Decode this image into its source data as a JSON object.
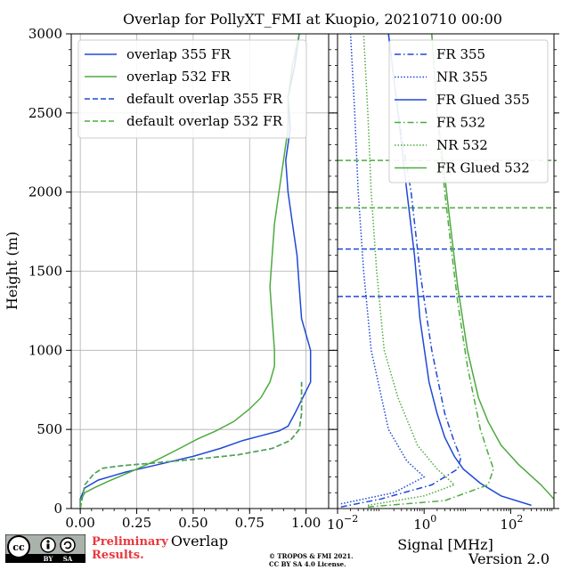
{
  "chart_data": [
    {
      "type": "line",
      "panel": "left",
      "title": "Overlap for PollyXT_FMI at Kuopio, 20210710 00:00",
      "xlabel": "Overlap",
      "ylabel": "Height (m)",
      "xlim": [
        -0.04,
        1.1
      ],
      "ylim": [
        0,
        3000
      ],
      "xticks": [
        "0.00",
        "0.25",
        "0.50",
        "0.75",
        "1.00"
      ],
      "yticks": [
        "0",
        "500",
        "1000",
        "1500",
        "2000",
        "2500",
        "3000"
      ],
      "grid": true,
      "legend_position": "top-left",
      "series": [
        {
          "name": "overlap 355 FR",
          "color": "#1f48d6",
          "style": "solid",
          "points": [
            [
              0.0,
              10
            ],
            [
              0.0,
              60
            ],
            [
              0.02,
              130
            ],
            [
              0.08,
              180
            ],
            [
              0.2,
              230
            ],
            [
              0.35,
              280
            ],
            [
              0.5,
              330
            ],
            [
              0.62,
              380
            ],
            [
              0.72,
              430
            ],
            [
              0.8,
              460
            ],
            [
              0.88,
              490
            ],
            [
              0.92,
              520
            ],
            [
              0.95,
              600
            ],
            [
              1.02,
              800
            ],
            [
              1.02,
              1000
            ],
            [
              0.98,
              1200
            ],
            [
              0.97,
              1400
            ],
            [
              0.96,
              1600
            ],
            [
              0.94,
              1800
            ],
            [
              0.92,
              2000
            ],
            [
              0.91,
              2200
            ],
            [
              0.93,
              2400
            ],
            [
              0.92,
              2600
            ],
            [
              0.95,
              2800
            ],
            [
              0.97,
              3000
            ]
          ]
        },
        {
          "name": "overlap 532 FR",
          "color": "#4daa3f",
          "style": "solid",
          "points": [
            [
              0.0,
              10
            ],
            [
              0.0,
              50
            ],
            [
              0.02,
              100
            ],
            [
              0.06,
              130
            ],
            [
              0.12,
              170
            ],
            [
              0.22,
              230
            ],
            [
              0.33,
              300
            ],
            [
              0.44,
              380
            ],
            [
              0.52,
              440
            ],
            [
              0.6,
              490
            ],
            [
              0.68,
              550
            ],
            [
              0.75,
              630
            ],
            [
              0.8,
              700
            ],
            [
              0.84,
              800
            ],
            [
              0.86,
              900
            ],
            [
              0.86,
              1000
            ],
            [
              0.85,
              1200
            ],
            [
              0.84,
              1400
            ],
            [
              0.85,
              1600
            ],
            [
              0.86,
              1800
            ],
            [
              0.88,
              2000
            ],
            [
              0.9,
              2200
            ],
            [
              0.92,
              2400
            ],
            [
              0.92,
              2600
            ],
            [
              0.94,
              2800
            ],
            [
              0.97,
              3000
            ]
          ]
        },
        {
          "name": "default overlap 355 FR",
          "color": "#1f48d6",
          "style": "dashed",
          "points": [
            [
              0.0,
              0
            ],
            [
              0.02,
              150
            ],
            [
              0.06,
              220
            ],
            [
              0.1,
              255
            ],
            [
              0.18,
              270
            ],
            [
              0.3,
              285
            ],
            [
              0.5,
              310
            ],
            [
              0.7,
              340
            ],
            [
              0.85,
              380
            ],
            [
              0.93,
              430
            ],
            [
              0.97,
              500
            ],
            [
              0.98,
              600
            ],
            [
              0.98,
              700
            ],
            [
              0.98,
              800
            ]
          ]
        },
        {
          "name": "default overlap 532 FR",
          "color": "#4daa3f",
          "style": "dashed",
          "points": [
            [
              0.0,
              0
            ],
            [
              0.02,
              150
            ],
            [
              0.06,
              220
            ],
            [
              0.1,
              255
            ],
            [
              0.18,
              270
            ],
            [
              0.3,
              285
            ],
            [
              0.5,
              310
            ],
            [
              0.7,
              340
            ],
            [
              0.85,
              380
            ],
            [
              0.93,
              430
            ],
            [
              0.97,
              500
            ],
            [
              0.98,
              600
            ],
            [
              0.98,
              700
            ],
            [
              0.98,
              800
            ]
          ]
        }
      ]
    },
    {
      "type": "line",
      "panel": "right",
      "xlabel": "Signal [MHz]",
      "xscale": "log",
      "xlim": [
        0.01,
        1000
      ],
      "ylim": [
        0,
        3000
      ],
      "xticks": [
        0.01,
        1,
        100
      ],
      "xticklabels": [
        "10",
        "10",
        "10"
      ],
      "xtick_exponents": [
        "−2",
        "0",
        "2"
      ],
      "grid": false,
      "legend_position": "top-right",
      "hlines": [
        {
          "y": 2200,
          "color": "#4daa3f",
          "style": "dashed"
        },
        {
          "y": 1900,
          "color": "#4daa3f",
          "style": "dashed"
        },
        {
          "y": 1640,
          "color": "#1f48d6",
          "style": "dashed"
        },
        {
          "y": 1340,
          "color": "#1f48d6",
          "style": "dashed"
        }
      ],
      "series": [
        {
          "name": "FR 355",
          "color": "#1f48d6",
          "style": "dashdot",
          "points": [
            [
              0.012,
              10
            ],
            [
              0.1,
              60
            ],
            [
              1.5,
              150
            ],
            [
              6,
              250
            ],
            [
              7,
              320
            ],
            [
              5,
              420
            ],
            [
              3,
              600
            ],
            [
              1.5,
              1000
            ],
            [
              0.8,
              1500
            ],
            [
              0.5,
              2000
            ],
            [
              0.25,
              2500
            ],
            [
              0.15,
              3000
            ]
          ]
        },
        {
          "name": "NR 355",
          "color": "#1f48d6",
          "style": "dotted",
          "points": [
            [
              0.012,
              30
            ],
            [
              0.2,
              100
            ],
            [
              1,
              200
            ],
            [
              0.4,
              300
            ],
            [
              0.15,
              500
            ],
            [
              0.06,
              1000
            ],
            [
              0.04,
              1500
            ],
            [
              0.03,
              2000
            ],
            [
              0.025,
              2500
            ],
            [
              0.02,
              3000
            ]
          ]
        },
        {
          "name": "FR Glued 355",
          "color": "#1f48d6",
          "style": "solid",
          "points": [
            [
              300,
              20
            ],
            [
              60,
              80
            ],
            [
              20,
              160
            ],
            [
              8,
              250
            ],
            [
              5,
              330
            ],
            [
              3,
              450
            ],
            [
              2,
              600
            ],
            [
              1.3,
              800
            ],
            [
              0.8,
              1200
            ],
            [
              0.6,
              1600
            ],
            [
              0.4,
              2000
            ],
            [
              0.25,
              2500
            ],
            [
              0.15,
              3000
            ]
          ]
        },
        {
          "name": "FR 532",
          "color": "#4daa3f",
          "style": "dashdot",
          "points": [
            [
              0.05,
              10
            ],
            [
              3,
              50
            ],
            [
              30,
              150
            ],
            [
              40,
              250
            ],
            [
              30,
              350
            ],
            [
              20,
              500
            ],
            [
              10,
              900
            ],
            [
              6,
              1300
            ],
            [
              4,
              1700
            ],
            [
              3,
              2000
            ],
            [
              2,
              2500
            ],
            [
              1.5,
              3000
            ]
          ]
        },
        {
          "name": "NR 532",
          "color": "#4daa3f",
          "style": "dotted",
          "points": [
            [
              0.05,
              20
            ],
            [
              1,
              80
            ],
            [
              5,
              150
            ],
            [
              2,
              250
            ],
            [
              0.7,
              400
            ],
            [
              0.25,
              700
            ],
            [
              0.12,
              1000
            ],
            [
              0.08,
              1500
            ],
            [
              0.06,
              2000
            ],
            [
              0.05,
              2500
            ],
            [
              0.04,
              3000
            ]
          ]
        },
        {
          "name": "FR Glued 532",
          "color": "#4daa3f",
          "style": "solid",
          "points": [
            [
              1000,
              60
            ],
            [
              500,
              150
            ],
            [
              150,
              280
            ],
            [
              60,
              400
            ],
            [
              30,
              550
            ],
            [
              18,
              700
            ],
            [
              10,
              1000
            ],
            [
              6,
              1400
            ],
            [
              4,
              1800
            ],
            [
              3,
              2100
            ],
            [
              2,
              2500
            ],
            [
              1.5,
              3000
            ]
          ]
        }
      ]
    }
  ],
  "footer": {
    "license_logo": "cc-by-sa-badge",
    "license_cc": "cc",
    "license_by": "BY",
    "license_sa": "SA",
    "preliminary_line1": "Preliminary",
    "preliminary_line2": "Results.",
    "copyright_line1": "© TROPOS & FMI 2021.",
    "copyright_line2": "CC BY SA 4.0 License.",
    "version": "Version 2.0"
  },
  "colors": {
    "blue": "#1f48d6",
    "green": "#4daa3f",
    "grid": "#b0b0b0",
    "prelim": "#e8383d"
  }
}
